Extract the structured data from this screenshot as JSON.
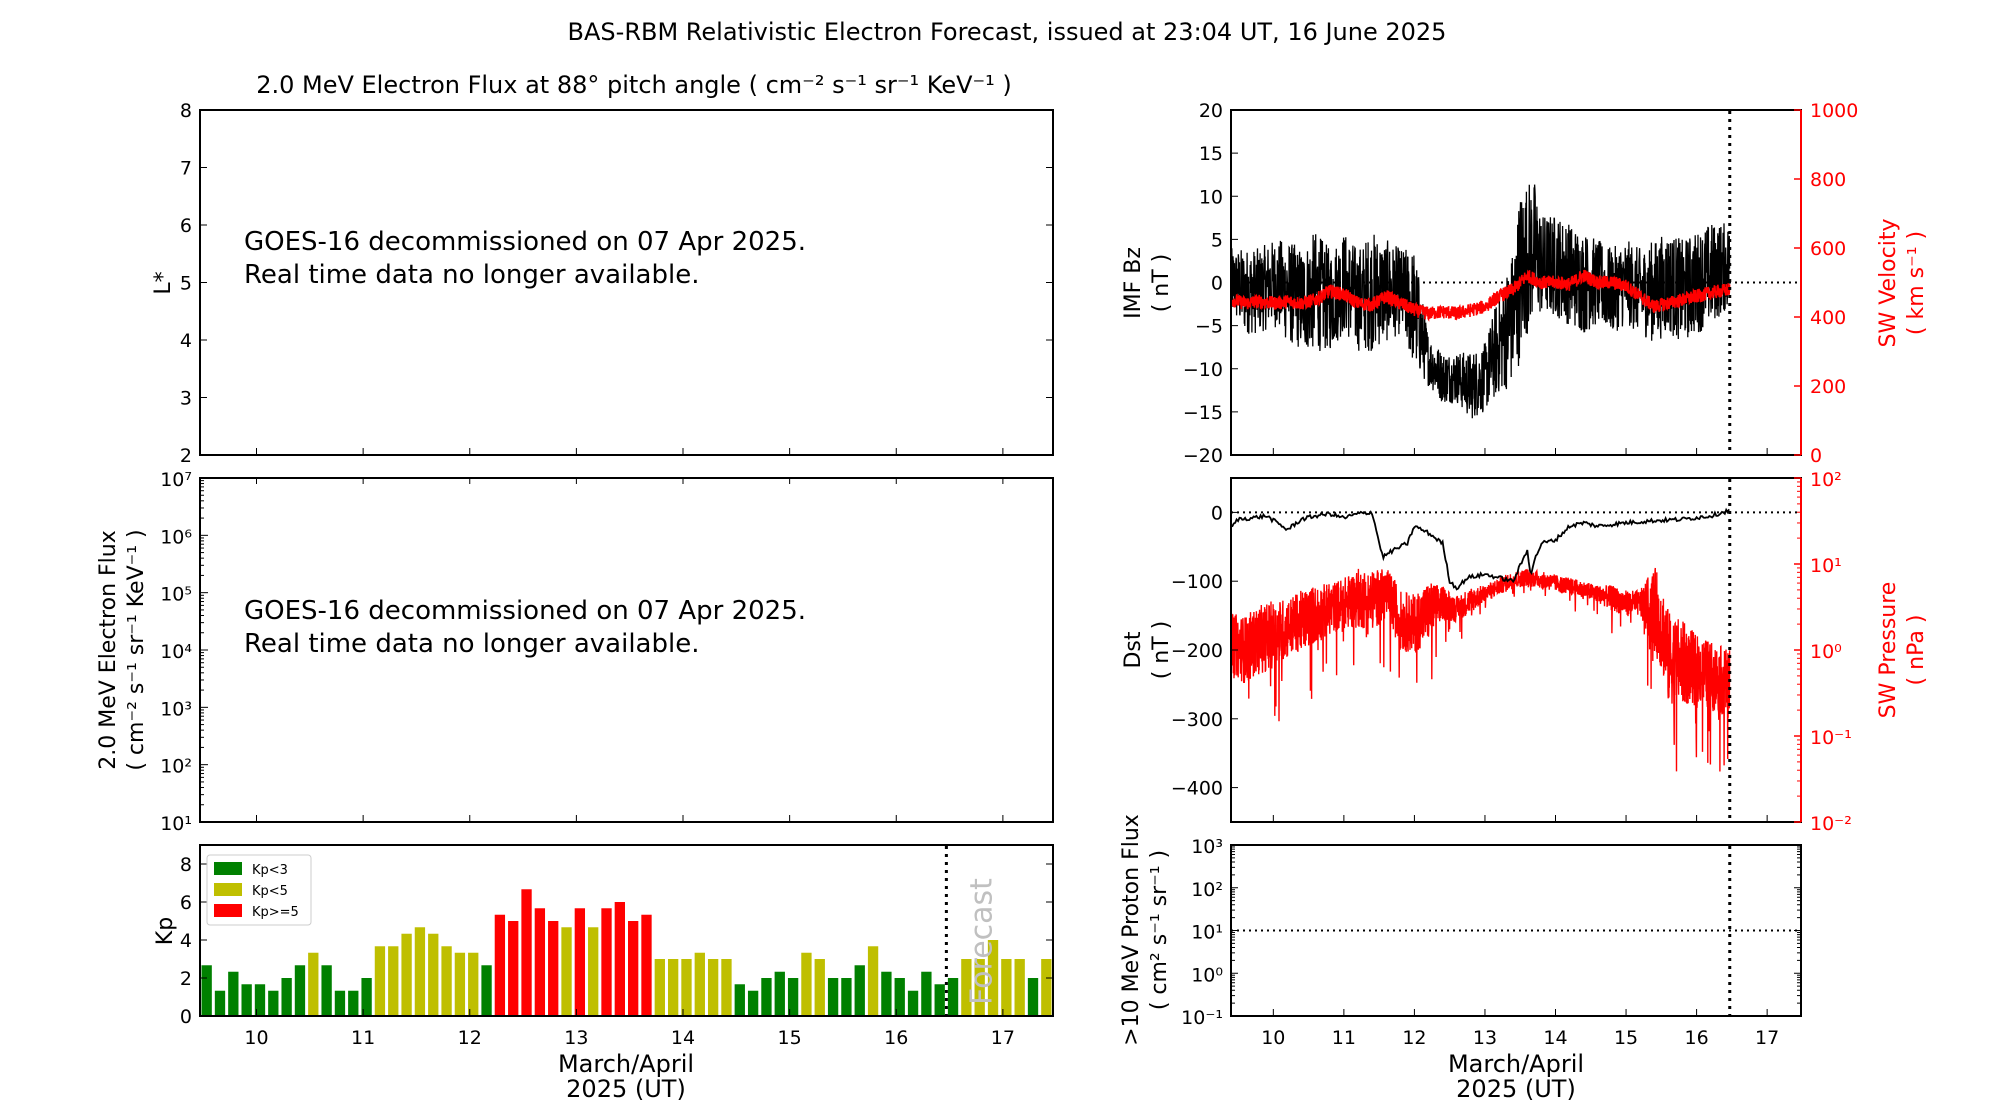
{
  "figure": {
    "title": "BAS-RBM Relativistic Electron Forecast, issued at 23:04 UT, 16 June 2025",
    "xlabel_line1": "March/April",
    "xlabel_line2": "2025 (UT)",
    "now_marker_day": 16.47,
    "colors": {
      "black": "#000000",
      "red": "#ff0000",
      "kp_low": "#008000",
      "kp_mid": "#bfbf00",
      "kp_high": "#ff0000",
      "forecast_text": "#c0c0c0"
    }
  },
  "chart_data": [
    {
      "id": "lstar",
      "type": "heatmap",
      "title": "2.0 MeV Electron Flux at 88° pitch angle ( cm⁻² s⁻¹ sr⁻¹ KeV⁻¹ )",
      "ylabel": "L*",
      "xlim": [
        9.47,
        17.47
      ],
      "ylim": [
        2,
        8
      ],
      "yticks": [
        "2",
        "3",
        "4",
        "5",
        "6",
        "7",
        "8"
      ],
      "xticks": [
        10,
        11,
        12,
        13,
        14,
        15,
        16,
        17
      ],
      "annotation_line1": "GOES-16 decommissioned on 07 Apr 2025.",
      "annotation_line2": "Real time data no longer available."
    },
    {
      "id": "flux",
      "type": "line",
      "ylabel_line1": "2.0 MeV Electron Flux",
      "ylabel_line2": "( cm⁻² s⁻¹ sr⁻¹ KeV⁻¹ )",
      "yscale": "log",
      "ylim": [
        10,
        10000000
      ],
      "yticks": [
        "10¹",
        "10²",
        "10³",
        "10⁴",
        "10⁵",
        "10⁶",
        "10⁷"
      ],
      "xlim": [
        9.47,
        17.47
      ],
      "annotation_line1": "GOES-16 decommissioned on 07 Apr 2025.",
      "annotation_line2": "Real time data no longer available."
    },
    {
      "id": "kp",
      "type": "bar",
      "ylabel": "Kp",
      "ylim": [
        0,
        9
      ],
      "yticks": [
        "0",
        "2",
        "4",
        "6",
        "8"
      ],
      "xlim": [
        9.47,
        17.47
      ],
      "xticks": [
        "10",
        "11",
        "12",
        "13",
        "14",
        "15",
        "16",
        "17"
      ],
      "start_day": 9.47,
      "bar_step_days": 0.125,
      "values": [
        2.67,
        1.33,
        2.33,
        1.67,
        1.67,
        1.33,
        2,
        2.67,
        3.33,
        2.67,
        1.33,
        1.33,
        2,
        3.67,
        3.67,
        4.33,
        4.67,
        4.33,
        3.67,
        3.33,
        3.33,
        2.67,
        5.33,
        5,
        6.67,
        5.67,
        5,
        4.67,
        5.67,
        4.67,
        5.67,
        6,
        5,
        5.33,
        3,
        3,
        3,
        3.33,
        3,
        3,
        1.67,
        1.33,
        2,
        2.33,
        2,
        3.33,
        3,
        2,
        2,
        2.67,
        3.67,
        2.33,
        2,
        1.33,
        2.33,
        1.67,
        2,
        3,
        3,
        4,
        3,
        3,
        2,
        3
      ],
      "legend": [
        {
          "label": "Kp<3",
          "color": "#008000"
        },
        {
          "label": "Kp<5",
          "color": "#bfbf00"
        },
        {
          "label": "Kp>=5",
          "color": "#ff0000"
        }
      ],
      "legend_position": "top-left",
      "forecast_label": "Forecast"
    },
    {
      "id": "imf",
      "type": "line",
      "ylabel_line1": "IMF Bz",
      "ylabel_line2": "( nT )",
      "ylim": [
        -20,
        20
      ],
      "yticks": [
        "−20",
        "−15",
        "−10",
        "−5",
        "0",
        "5",
        "10",
        "15",
        "20"
      ],
      "y2label_line1": "SW Velocity",
      "y2label_line2": "( km s⁻¹ )",
      "y2lim": [
        0,
        1000
      ],
      "y2ticks": [
        "0",
        "200",
        "400",
        "600",
        "800",
        "1000"
      ],
      "xlim": [
        9.4,
        17.48
      ],
      "series": [
        {
          "name": "IMF Bz (nT)",
          "color": "#000000",
          "x": [
            9.4,
            9.6,
            9.8,
            10.0,
            10.2,
            10.4,
            10.6,
            10.8,
            11.0,
            11.2,
            11.4,
            11.6,
            11.8,
            12.0,
            12.2,
            12.4,
            12.6,
            12.8,
            13.0,
            13.2,
            13.4,
            13.5,
            13.6,
            13.7,
            13.8,
            14.0,
            14.2,
            14.4,
            14.6,
            14.8,
            15.0,
            15.2,
            15.4,
            15.6,
            15.8,
            16.0,
            16.2,
            16.47
          ],
          "y_mid": [
            0,
            -1,
            -1,
            0,
            -1,
            -2,
            -1,
            -2,
            0,
            -2,
            -1,
            -1,
            -1,
            -3,
            -9,
            -11,
            -11,
            -12,
            -11,
            -7,
            -4,
            1,
            3,
            4,
            2,
            2,
            1,
            0,
            0,
            -1,
            0,
            -1,
            -1,
            0,
            -1,
            0,
            1,
            2
          ],
          "y_amp": [
            4,
            5,
            5,
            5,
            6,
            6,
            7,
            6,
            6,
            6,
            7,
            6,
            5,
            7,
            3,
            3,
            3,
            4,
            4,
            6,
            8,
            10,
            9,
            8,
            6,
            6,
            6,
            6,
            5,
            5,
            5,
            5,
            6,
            6,
            6,
            6,
            6,
            5
          ]
        },
        {
          "name": "SW Velocity (km/s)",
          "color": "#ff0000",
          "axis": "right",
          "x": [
            9.4,
            9.6,
            9.8,
            10.0,
            10.2,
            10.4,
            10.6,
            10.8,
            11.0,
            11.2,
            11.4,
            11.6,
            11.8,
            12.0,
            12.2,
            12.4,
            12.6,
            12.8,
            13.0,
            13.2,
            13.4,
            13.6,
            13.8,
            14.0,
            14.2,
            14.4,
            14.6,
            14.8,
            15.0,
            15.2,
            15.4,
            15.6,
            15.8,
            16.0,
            16.2,
            16.47
          ],
          "y": [
            450,
            440,
            445,
            440,
            445,
            440,
            450,
            475,
            465,
            440,
            435,
            460,
            440,
            420,
            410,
            415,
            410,
            420,
            430,
            460,
            480,
            520,
            500,
            500,
            495,
            520,
            500,
            500,
            490,
            460,
            430,
            440,
            450,
            460,
            470,
            480
          ]
        }
      ]
    },
    {
      "id": "dst",
      "type": "line",
      "ylabel_line1": "Dst",
      "ylabel_line2": "( nT )",
      "ylim": [
        -450,
        50
      ],
      "yticks": [
        "−400",
        "−300",
        "−200",
        "−100",
        "0"
      ],
      "y2label_line1": "SW Pressure",
      "y2label_line2": "( nPa )",
      "y2scale": "log",
      "y2lim": [
        0.01,
        100
      ],
      "y2ticks": [
        "10⁻²",
        "10⁻¹",
        "10⁰",
        "10¹",
        "10²"
      ],
      "xlim": [
        9.4,
        17.48
      ],
      "series": [
        {
          "name": "Dst (nT)",
          "color": "#000000",
          "x": [
            9.4,
            9.5,
            9.7,
            9.9,
            10.2,
            10.4,
            10.6,
            10.8,
            11.0,
            11.2,
            11.4,
            11.55,
            11.7,
            11.9,
            12.0,
            12.2,
            12.4,
            12.5,
            12.6,
            12.75,
            13.0,
            13.2,
            13.4,
            13.6,
            13.65,
            13.7,
            13.8,
            14.0,
            14.2,
            14.4,
            14.6,
            15.0,
            15.4,
            15.8,
            16.2,
            16.47
          ],
          "y": [
            -22,
            -10,
            -8,
            -5,
            -25,
            -10,
            -5,
            -2,
            -8,
            -2,
            0,
            -65,
            -55,
            -45,
            -20,
            -30,
            -45,
            -100,
            -110,
            -95,
            -90,
            -95,
            -100,
            -55,
            -90,
            -70,
            -45,
            -40,
            -20,
            -15,
            -20,
            -15,
            -12,
            -10,
            -5,
            3
          ]
        },
        {
          "name": "SW Pressure (nPa)",
          "color": "#ff0000",
          "axis": "right",
          "x": [
            9.4,
            9.6,
            9.8,
            10.0,
            10.2,
            10.4,
            10.6,
            10.8,
            11.0,
            11.2,
            11.4,
            11.6,
            11.8,
            12.0,
            12.2,
            12.4,
            12.6,
            12.8,
            13.0,
            13.2,
            13.4,
            13.6,
            13.8,
            14.0,
            14.2,
            14.4,
            14.6,
            14.8,
            15.0,
            15.2,
            15.4,
            15.6,
            15.8,
            16.0,
            16.2,
            16.47
          ],
          "y": [
            1.2,
            1.0,
            1.3,
            1.5,
            1.8,
            2.2,
            2.6,
            3.0,
            3.5,
            4.0,
            3.8,
            4.5,
            2.2,
            2.0,
            2.8,
            3.5,
            3.0,
            3.8,
            4.5,
            5.5,
            6.5,
            7.0,
            6.5,
            6.0,
            5.5,
            5.0,
            4.5,
            4.0,
            3.5,
            3.5,
            3.0,
            0.8,
            0.7,
            0.6,
            0.5,
            0.4
          ],
          "noise_decades": [
            0.35,
            0.4,
            0.4,
            0.4,
            0.35,
            0.35,
            0.35,
            0.3,
            0.3,
            0.35,
            0.35,
            0.3,
            0.35,
            0.35,
            0.35,
            0.2,
            0.15,
            0.15,
            0.1,
            0.1,
            0.1,
            0.1,
            0.1,
            0.1,
            0.1,
            0.1,
            0.1,
            0.15,
            0.15,
            0.15,
            0.5,
            0.55,
            0.5,
            0.4,
            0.4,
            0.4
          ]
        }
      ]
    },
    {
      "id": "proton",
      "type": "line",
      "ylabel_line1": ">10 MeV Proton Flux",
      "ylabel_line2": "( cm² s⁻¹ sr⁻¹ )",
      "yscale": "log",
      "ylim": [
        0.1,
        1000
      ],
      "yticks": [
        "10⁻¹",
        "10⁰",
        "10¹",
        "10²",
        "10³"
      ],
      "threshold": 10,
      "xlim": [
        9.4,
        17.48
      ],
      "xticks": [
        "10",
        "11",
        "12",
        "13",
        "14",
        "15",
        "16",
        "17"
      ],
      "series": []
    }
  ]
}
